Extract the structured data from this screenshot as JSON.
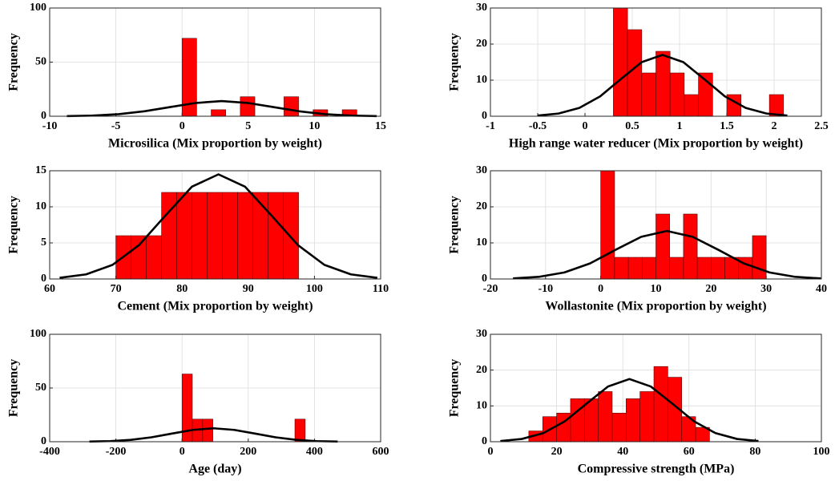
{
  "chart_data": [
    {
      "type": "histogram",
      "xlabel": "Microsilica (Mix proportion by weight)",
      "ylabel": "Frequency",
      "bins": [
        0,
        1.1,
        2.2,
        3.3,
        4.4,
        5.5,
        6.6,
        7.7,
        8.8,
        9.9,
        11,
        12.1,
        13.2
      ],
      "counts": [
        72,
        0,
        6,
        0,
        18,
        0,
        0,
        18,
        0,
        6,
        0,
        6
      ],
      "color": "#ff0000",
      "curve": {
        "x": [
          -8.7,
          -6.75,
          -4.8,
          -2.85,
          -0.9,
          1.05,
          3,
          4.95,
          6.9,
          8.85,
          10.8,
          12.75,
          14.7
        ],
        "values": [
          0.15,
          0.6,
          1.9,
          4.6,
          8.5,
          12.3,
          14,
          12.3,
          8.5,
          4.6,
          1.9,
          0.6,
          0.15
        ],
        "color": "#000000"
      },
      "xlim": [
        -10,
        15
      ],
      "xticks": [
        -10,
        -5,
        0,
        5,
        10,
        15
      ],
      "ylim": [
        0,
        100
      ],
      "yticks": [
        0,
        50,
        100
      ],
      "grid": true
    },
    {
      "type": "histogram",
      "xlabel": "High range water reducer (Mix proportion by weight)",
      "ylabel": "Frequency",
      "bins": [
        0.3,
        0.45,
        0.6,
        0.75,
        0.9,
        1.05,
        1.2,
        1.35,
        1.5,
        1.65,
        1.8,
        1.95,
        2.1
      ],
      "counts": [
        30,
        24,
        12,
        18,
        12,
        6,
        12,
        0,
        6,
        0,
        0,
        6
      ],
      "color": "#ff0000",
      "curve": {
        "x": [
          -0.5,
          -0.28,
          -0.06,
          0.16,
          0.38,
          0.6,
          0.82,
          1.04,
          1.26,
          1.48,
          1.7,
          1.92,
          2.14
        ],
        "values": [
          0.19,
          0.75,
          2.3,
          5.5,
          10.3,
          15,
          17,
          15,
          10.3,
          5.5,
          2.3,
          0.75,
          0.19
        ],
        "color": "#000000"
      },
      "xlim": [
        -1,
        2.5
      ],
      "xticks": [
        -1,
        -0.5,
        0,
        0.5,
        1,
        1.5,
        2,
        2.5
      ],
      "ylim": [
        0,
        30
      ],
      "yticks": [
        0,
        10,
        20,
        30
      ],
      "grid": true
    },
    {
      "type": "histogram",
      "xlabel": "Cement (Mix proportion by weight)",
      "ylabel": "Frequency",
      "bins": [
        70,
        72.3,
        74.6,
        76.9,
        79.2,
        81.5,
        83.8,
        86.1,
        88.4,
        90.7,
        93,
        95.3,
        97.6
      ],
      "counts": [
        6,
        6,
        6,
        12,
        12,
        12,
        12,
        12,
        12,
        12,
        12,
        12
      ],
      "color": "#ff0000",
      "curve": {
        "x": [
          61.5,
          65.5,
          69.5,
          73.5,
          77.5,
          81.5,
          85.5,
          89.5,
          93.5,
          97.5,
          101.5,
          105.5,
          109.5
        ],
        "values": [
          0.16,
          0.64,
          1.96,
          4.7,
          8.8,
          12.8,
          14.5,
          12.8,
          8.8,
          4.7,
          1.96,
          0.64,
          0.16
        ],
        "color": "#000000"
      },
      "xlim": [
        60,
        110
      ],
      "xticks": [
        60,
        70,
        80,
        90,
        100,
        110
      ],
      "ylim": [
        0,
        15
      ],
      "yticks": [
        0,
        5,
        10,
        15
      ],
      "grid": true
    },
    {
      "type": "histogram",
      "xlabel": "Wollastonite (Mix proportion by weight)",
      "ylabel": "Frequency",
      "bins": [
        0,
        2.5,
        5,
        7.5,
        10,
        12.5,
        15,
        17.5,
        20,
        22.5,
        25,
        27.5,
        30
      ],
      "counts": [
        30,
        6,
        6,
        6,
        18,
        6,
        18,
        6,
        6,
        6,
        6,
        12
      ],
      "color": "#ff0000",
      "curve": {
        "x": [
          -15.9,
          -11.25,
          -6.6,
          -1.95,
          2.7,
          7.35,
          12,
          16.65,
          21.3,
          25.95,
          30.6,
          35.25,
          39.9
        ],
        "values": [
          0.15,
          0.59,
          1.8,
          4.3,
          8.1,
          11.7,
          13.3,
          11.7,
          8.1,
          4.3,
          1.8,
          0.59,
          0.15
        ],
        "color": "#000000"
      },
      "xlim": [
        -20,
        40
      ],
      "xticks": [
        -20,
        -10,
        0,
        10,
        20,
        30,
        40
      ],
      "ylim": [
        0,
        30
      ],
      "yticks": [
        0,
        10,
        20,
        30
      ],
      "grid": true
    },
    {
      "type": "histogram",
      "xlabel": "Age (day)",
      "ylabel": "Frequency",
      "bins": [
        0,
        31,
        62,
        93,
        124,
        155,
        186,
        217,
        248,
        279,
        310,
        341,
        372
      ],
      "counts": [
        63,
        21,
        21,
        0,
        0,
        0,
        0,
        0,
        0,
        0,
        0,
        21
      ],
      "color": "#ff0000",
      "curve": {
        "x": [
          -280,
          -217.5,
          -155,
          -92.5,
          -30,
          32.5,
          95,
          157.5,
          220,
          282.5,
          345,
          407.5,
          470
        ],
        "values": [
          0.14,
          0.55,
          1.7,
          4.1,
          7.6,
          11,
          12.5,
          11,
          7.6,
          4.1,
          1.7,
          0.55,
          0.14
        ],
        "color": "#000000"
      },
      "xlim": [
        -400,
        600
      ],
      "xticks": [
        -400,
        -200,
        0,
        200,
        400,
        600
      ],
      "ylim": [
        0,
        100
      ],
      "yticks": [
        0,
        50,
        100
      ],
      "grid": true
    },
    {
      "type": "histogram",
      "xlabel": "Compressive strength (MPa)",
      "ylabel": "Frequency",
      "bins": [
        11.6,
        15.8,
        20,
        24.2,
        28.4,
        32.6,
        36.8,
        41,
        45.2,
        49.4,
        53.6,
        57.8,
        62,
        66.2
      ],
      "counts": [
        3,
        7,
        8,
        12,
        12,
        14,
        8,
        12,
        14,
        21,
        18,
        7,
        4
      ],
      "color": "#ff0000",
      "curve": {
        "x": [
          3,
          9.5,
          16,
          22.5,
          29,
          35.5,
          42,
          48.5,
          55,
          61.5,
          68,
          74.5,
          81
        ],
        "values": [
          0.19,
          0.77,
          2.4,
          5.7,
          10.6,
          15.4,
          17.5,
          15.4,
          10.6,
          5.7,
          2.4,
          0.77,
          0.19
        ],
        "color": "#000000"
      },
      "xlim": [
        0,
        100
      ],
      "xticks": [
        0,
        20,
        40,
        60,
        80,
        100
      ],
      "ylim": [
        0,
        30
      ],
      "yticks": [
        0,
        10,
        20,
        30
      ],
      "grid": true
    }
  ]
}
